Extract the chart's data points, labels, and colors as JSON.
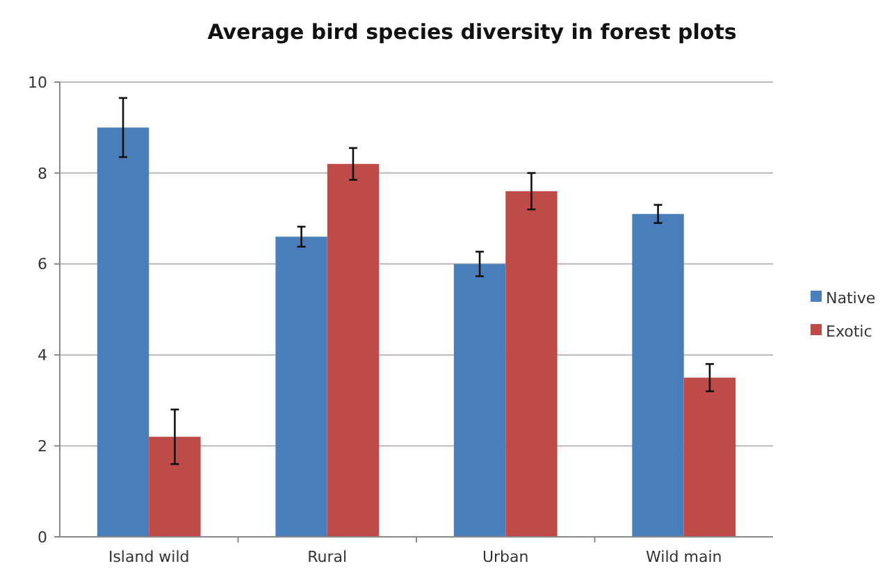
{
  "chart_data": {
    "type": "bar",
    "title": "Average bird species diversity in forest plots",
    "categories": [
      "Island wild",
      "Rural",
      "Urban",
      "Wild main"
    ],
    "series": [
      {
        "name": "Native",
        "color": "#4a7ebb",
        "values": [
          9.0,
          6.6,
          6.0,
          7.1
        ],
        "errors": [
          0.65,
          0.22,
          0.27,
          0.2
        ]
      },
      {
        "name": "Exotic",
        "color": "#be4b48",
        "values": [
          2.2,
          8.2,
          7.6,
          3.5
        ],
        "errors": [
          0.6,
          0.35,
          0.4,
          0.3
        ]
      }
    ],
    "ylim": [
      0,
      10
    ],
    "yticks": [
      0,
      2,
      4,
      6,
      8,
      10
    ],
    "grid": "y",
    "legend": "right"
  }
}
